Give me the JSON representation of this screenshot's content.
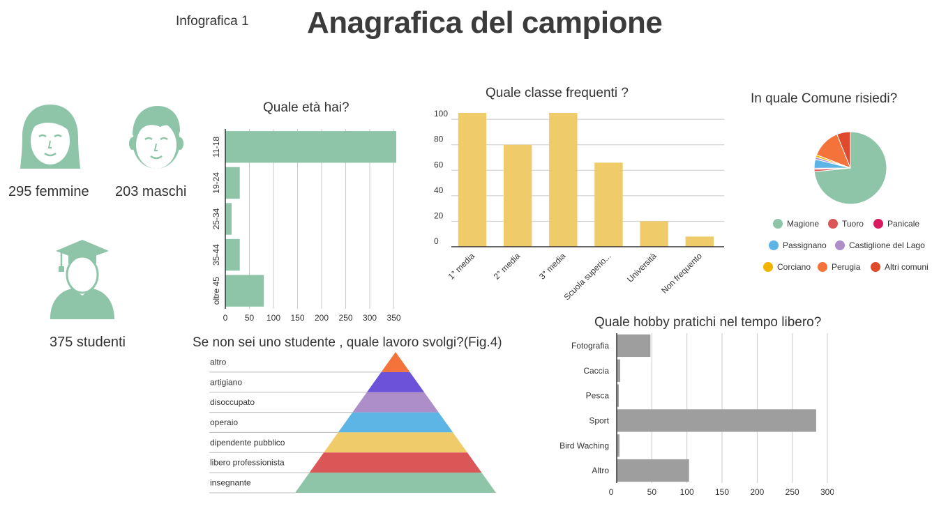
{
  "header": {
    "label": "Infografica 1",
    "title": "Anagrafica del campione"
  },
  "stats": {
    "female_label": "295 femmine",
    "male_label": "203 maschi",
    "student_label": "375 studenti"
  },
  "icons": {
    "female": "female-face-icon",
    "male": "male-face-icon",
    "student": "graduate-student-icon",
    "icon_color": "#8ec5a9"
  },
  "chart_data": [
    {
      "id": "age",
      "type": "bar",
      "orientation": "horizontal",
      "title": "Quale età hai?",
      "categories": [
        "11-18",
        "19-24",
        "25-34",
        "35-44",
        "oltre 45"
      ],
      "values": [
        355,
        30,
        13,
        30,
        80
      ],
      "xlim": [
        0,
        355
      ],
      "ticks": [
        0,
        50,
        100,
        150,
        200,
        250,
        300,
        350
      ],
      "color": "#8ec5a9",
      "grid": true
    },
    {
      "id": "class",
      "type": "bar",
      "orientation": "vertical",
      "title": "Quale classe frequenti ?",
      "categories": [
        "1° media",
        "2° media",
        "3° media",
        "Scuola superio...",
        "Università",
        "Non frequento"
      ],
      "values": [
        105,
        80,
        105,
        66,
        20,
        8
      ],
      "ylim": [
        0,
        105
      ],
      "ticks": [
        0,
        20,
        40,
        60,
        80,
        100
      ],
      "color": "#f0cb6a",
      "grid": true
    },
    {
      "id": "comune",
      "type": "pie",
      "title": "In quale Comune risiedi?",
      "legend_position": "bottom",
      "slices": [
        {
          "label": "Magione",
          "value": 73,
          "color": "#8ec5a9"
        },
        {
          "label": "Tuoro",
          "value": 1,
          "color": "#db5656"
        },
        {
          "label": "Panicale",
          "value": 0.5,
          "color": "#d81b60"
        },
        {
          "label": "Passignano",
          "value": 4,
          "color": "#5db5e6"
        },
        {
          "label": "Castiglione del Lago",
          "value": 1,
          "color": "#ae8ec8"
        },
        {
          "label": "Corciano",
          "value": 1,
          "color": "#f0b400"
        },
        {
          "label": "Perugia",
          "value": 13,
          "color": "#f4733a"
        },
        {
          "label": "Altri comuni",
          "value": 6,
          "color": "#e04a2c"
        }
      ]
    },
    {
      "id": "job",
      "type": "pyramid",
      "title": "Se non sei uno studente , quale lavoro svolgi?(Fig.4)",
      "levels": [
        {
          "label": "altro",
          "color": "#f4733a"
        },
        {
          "label": "artigiano",
          "color": "#6b52d9"
        },
        {
          "label": "disoccupato",
          "color": "#ae8ec8"
        },
        {
          "label": "operaio",
          "color": "#5db5e6"
        },
        {
          "label": "dipendente pubblico",
          "color": "#f0cb6a"
        },
        {
          "label": "libero professionista",
          "color": "#db5656"
        },
        {
          "label": "insegnante",
          "color": "#8ec5a9"
        }
      ]
    },
    {
      "id": "hobby",
      "type": "bar",
      "orientation": "horizontal",
      "title": "Quale hobby pratichi nel tempo libero?",
      "categories": [
        "Fotografia",
        "Caccia",
        "Pesca",
        "Sport",
        "Bird Waching",
        "Altro"
      ],
      "values": [
        48,
        5,
        3,
        284,
        4,
        103
      ],
      "xlim": [
        0,
        300
      ],
      "ticks": [
        0,
        50,
        100,
        150,
        200,
        250,
        300
      ],
      "color": "#9e9e9e",
      "grid": true
    }
  ]
}
